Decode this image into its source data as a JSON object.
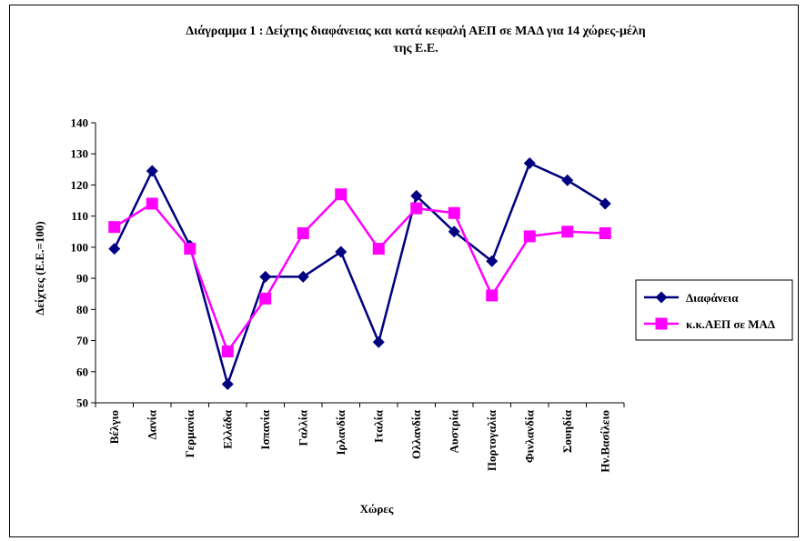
{
  "chart_data": {
    "type": "line",
    "title_line1": "Διάγραμμα 1 : Δείχτης διαφάνειας και  κατά κεφαλή ΑΕΠ σε ΜΑΔ  για 14 χώρες-μέλη",
    "title_line2": "της Ε.Ε.",
    "xlabel": "Χώρες",
    "ylabel": "Δείχτες (Ε.Ε.=100)",
    "ylim": [
      50,
      140
    ],
    "yticks": [
      50,
      60,
      70,
      80,
      90,
      100,
      110,
      120,
      130,
      140
    ],
    "categories": [
      "Βέλγιο",
      "Δανία",
      "Γερμανία",
      "Ελλάδα",
      "Ισπανία",
      "Γαλλία",
      "Ιρλανδία",
      "Ιταλία",
      "Ολλανδία",
      "Αυστρία",
      "Πορτογαλία",
      "Φινλανδία",
      "Σουηδία",
      "Ην.Βασίλειο"
    ],
    "grid": false,
    "legend_position": "right",
    "series": [
      {
        "name": "Διαφάνεια",
        "color": "#000080",
        "marker": "diamond",
        "values": [
          99.5,
          124.5,
          100.5,
          56,
          90.5,
          90.5,
          98.5,
          69.5,
          116.5,
          105,
          95.5,
          127,
          121.5,
          114
        ]
      },
      {
        "name": "κ.κ.ΑΕΠ σε ΜΑΔ",
        "color": "#ff00ff",
        "marker": "square",
        "values": [
          106.5,
          114,
          99.5,
          66.5,
          83.5,
          104.5,
          117,
          99.5,
          112.5,
          111,
          84.5,
          103.5,
          105,
          104.5
        ]
      }
    ]
  }
}
